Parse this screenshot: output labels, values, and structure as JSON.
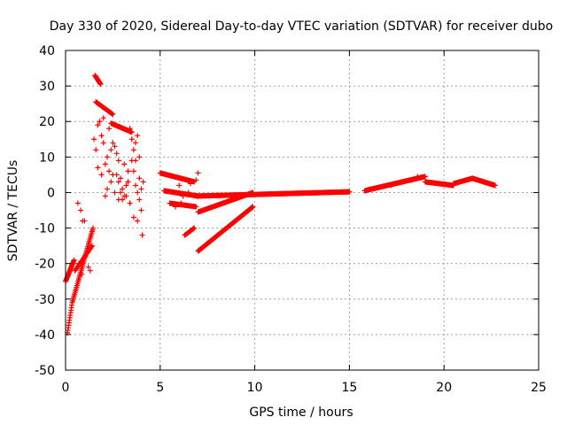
{
  "chart_data": {
    "type": "scatter",
    "title": "Day 330 of 2020, Sidereal Day-to-day VTEC variation (SDTVAR) for receiver dubo",
    "xlabel": "GPS time / hours",
    "ylabel": "SDTVAR / TECUs",
    "xlim": [
      0,
      25
    ],
    "ylim": [
      -50,
      40
    ],
    "x_ticks": [
      0,
      5,
      10,
      15,
      20,
      25
    ],
    "y_ticks": [
      -50,
      -40,
      -30,
      -20,
      -10,
      0,
      10,
      20,
      30,
      40
    ],
    "grid": true,
    "marker": "+",
    "color": "#ff0000",
    "series": [
      {
        "name": "SDTVAR",
        "segments": [
          {
            "x0": 0.0,
            "x1": 0.45,
            "y0": -25,
            "y1": -19,
            "step": 0.02
          },
          {
            "x0": 0.1,
            "x1": 0.35,
            "y0": -39.5,
            "y1": -31,
            "step": 0.02
          },
          {
            "x0": 0.35,
            "x1": 1.45,
            "y0": -31,
            "y1": -10,
            "step": 0.025
          },
          {
            "x0": 0.5,
            "x1": 1.4,
            "y0": -22,
            "y1": -15,
            "step": 0.04
          },
          {
            "x0": 1.55,
            "x1": 1.85,
            "y0": 33,
            "y1": 30.5,
            "step": 0.02
          },
          {
            "x0": 1.6,
            "x1": 2.5,
            "y0": 25.5,
            "y1": 22,
            "step": 0.03
          },
          {
            "x0": 2.4,
            "x1": 3.5,
            "y0": 19.5,
            "y1": 17,
            "step": 0.03
          },
          {
            "x0": 5.0,
            "x1": 6.8,
            "y0": 5.5,
            "y1": 3.0,
            "step": 0.025
          },
          {
            "x0": 5.2,
            "x1": 7.0,
            "y0": 0.5,
            "y1": -1.0,
            "step": 0.03
          },
          {
            "x0": 5.5,
            "x1": 6.9,
            "y0": -3.0,
            "y1": -4.0,
            "step": 0.04
          },
          {
            "x0": 6.9,
            "x1": 15.0,
            "y0": -1.0,
            "y1": 0.2,
            "step": 0.03
          },
          {
            "x0": 7.0,
            "x1": 9.9,
            "y0": -5.5,
            "y1": 0,
            "step": 0.03
          },
          {
            "x0": 7.0,
            "x1": 9.9,
            "y0": -16.5,
            "y1": -4,
            "step": 0.02
          },
          {
            "x0": 6.3,
            "x1": 6.8,
            "y0": -12,
            "y1": -10,
            "step": 0.04
          },
          {
            "x0": 15.8,
            "x1": 19.0,
            "y0": 0.5,
            "y1": 4.5,
            "step": 0.025
          },
          {
            "x0": 19.0,
            "x1": 20.5,
            "y0": 3.0,
            "y1": 2.0,
            "step": 0.025
          },
          {
            "x0": 20.5,
            "x1": 21.5,
            "y0": 2.5,
            "y1": 4.0,
            "step": 0.025
          },
          {
            "x0": 21.5,
            "x1": 22.7,
            "y0": 4.0,
            "y1": 2.0,
            "step": 0.025
          }
        ],
        "points": [
          [
            0.65,
            -3
          ],
          [
            0.8,
            -5
          ],
          [
            0.9,
            -8
          ],
          [
            1.0,
            -8
          ],
          [
            0.7,
            -20
          ],
          [
            0.85,
            -23
          ],
          [
            1.2,
            -21
          ],
          [
            1.3,
            -22
          ],
          [
            1.5,
            15
          ],
          [
            1.6,
            12
          ],
          [
            1.7,
            19
          ],
          [
            1.8,
            20
          ],
          [
            1.9,
            16
          ],
          [
            2.0,
            14
          ],
          [
            2.1,
            8
          ],
          [
            2.2,
            10
          ],
          [
            2.4,
            12
          ],
          [
            2.5,
            14
          ],
          [
            2.6,
            13
          ],
          [
            2.7,
            11
          ],
          [
            2.8,
            9
          ],
          [
            2.3,
            6
          ],
          [
            2.5,
            5
          ],
          [
            2.7,
            5
          ],
          [
            2.8,
            3
          ],
          [
            2.9,
            4
          ],
          [
            3.0,
            1
          ],
          [
            3.1,
            -1
          ],
          [
            3.2,
            2
          ],
          [
            2.9,
            0
          ],
          [
            3.0,
            -2
          ],
          [
            3.3,
            3
          ],
          [
            2.2,
            1
          ],
          [
            2.4,
            3
          ],
          [
            2.1,
            -1
          ],
          [
            2.6,
            0
          ],
          [
            2.8,
            -2
          ],
          [
            3.1,
            8
          ],
          [
            3.3,
            6
          ],
          [
            3.5,
            9
          ],
          [
            3.6,
            12
          ],
          [
            3.7,
            14
          ],
          [
            3.8,
            16
          ],
          [
            3.5,
            15
          ],
          [
            3.4,
            18
          ],
          [
            3.6,
            6
          ],
          [
            3.7,
            2
          ],
          [
            3.8,
            0
          ],
          [
            3.9,
            -2
          ],
          [
            4.0,
            1
          ],
          [
            3.9,
            4
          ],
          [
            4.0,
            -5
          ],
          [
            4.1,
            3
          ],
          [
            3.6,
            -7
          ],
          [
            3.8,
            -8
          ],
          [
            4.05,
            -12
          ],
          [
            3.2,
            -1
          ],
          [
            3.4,
            -3
          ],
          [
            3.9,
            10
          ],
          [
            3.7,
            9
          ],
          [
            2.0,
            21
          ],
          [
            2.3,
            18
          ],
          [
            1.7,
            7
          ],
          [
            1.9,
            5
          ],
          [
            6.0,
            2.0
          ],
          [
            6.2,
            -1
          ],
          [
            6.5,
            0
          ],
          [
            6.6,
            2.5
          ],
          [
            7.0,
            5.5
          ],
          [
            6.9,
            3.5
          ],
          [
            5.8,
            -4
          ],
          [
            6.1,
            -3
          ],
          [
            18.3,
            3.5
          ],
          [
            18.6,
            4.5
          ],
          [
            17.8,
            3.0
          ],
          [
            17.2,
            2.0
          ]
        ]
      }
    ]
  }
}
